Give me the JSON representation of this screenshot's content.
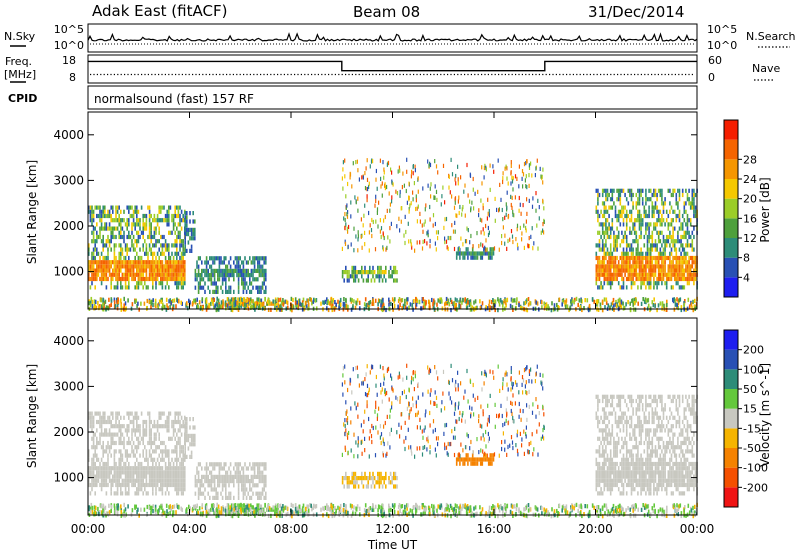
{
  "header": {
    "station": "Adak East (fitACF)",
    "beam": "Beam 08",
    "date": "31/Dec/2014"
  },
  "top_panels": {
    "nsky_label": "N.Sky",
    "nsky_ticks": [
      "10^5",
      "10^0"
    ],
    "nsearch_label": "N.Search",
    "nsearch_ticks": [
      "10^5",
      "10^0"
    ],
    "freq_label_1": "Freq.",
    "freq_label_2": "[MHz]",
    "freq_ticks": [
      "18",
      "8"
    ],
    "nave_label": "Nave",
    "nave_ticks": [
      "60",
      "0"
    ],
    "cpid_label": "CPID",
    "cpid_text": "normalsound (fast) 157 RF"
  },
  "axes": {
    "ylabel": "Slant Range [km]",
    "xlabel": "Time UT",
    "x_ticks": [
      "00:00",
      "04:00",
      "08:00",
      "12:00",
      "16:00",
      "20:00",
      "00:00"
    ],
    "y_ticks": [
      "1000",
      "2000",
      "3000",
      "4000"
    ]
  },
  "colorbars": {
    "power": {
      "label": "Power [dB]",
      "ticks": [
        "4",
        "8",
        "12",
        "16",
        "20",
        "24",
        "28"
      ],
      "colors": [
        "#1e1ef0",
        "#2850b4",
        "#2d8c78",
        "#4ea03c",
        "#9bcd28",
        "#f5c800",
        "#f59600",
        "#f56400",
        "#f51e00"
      ]
    },
    "velocity": {
      "label": "Velocity [m s^-1]",
      "ticks": [
        "200",
        "100",
        "50",
        "15",
        "-15",
        "-50",
        "-100",
        "-200"
      ],
      "colors": [
        "#1e1ef0",
        "#2850b4",
        "#2d8c78",
        "#64c83c",
        "#c8c8c0",
        "#f5b400",
        "#f58200",
        "#f55000",
        "#f01414"
      ]
    }
  },
  "chart_data": [
    {
      "type": "line",
      "name": "N.Sky / N.Search",
      "xlim": [
        0,
        24
      ],
      "x_unit": "hours UT",
      "points": [
        [
          0,
          4.2
        ],
        [
          2,
          4.6
        ],
        [
          4,
          4.4
        ],
        [
          6,
          4.8
        ],
        [
          8,
          4.5
        ],
        [
          10,
          4.9
        ],
        [
          12,
          4.6
        ],
        [
          14,
          4.8
        ],
        [
          16,
          4.7
        ],
        [
          18,
          4.6
        ],
        [
          20,
          4.4
        ],
        [
          22,
          4.6
        ],
        [
          24,
          4.3
        ]
      ]
    },
    {
      "type": "line",
      "name": "Freq.",
      "xlim": [
        0,
        24
      ],
      "ylim": [
        8,
        18
      ],
      "x": [
        0,
        10,
        10,
        18,
        18,
        24
      ],
      "values": [
        15.7,
        15.7,
        12.4,
        12.4,
        15.7,
        15.7
      ]
    },
    {
      "type": "heatmap",
      "name": "Power",
      "xlim": [
        0,
        24
      ],
      "ylim": [
        180,
        4500
      ],
      "regions": [
        {
          "t0": 0.0,
          "t1": 3.8,
          "r0": 700,
          "r1": 2450,
          "core0": 850,
          "core1": 1300,
          "peak": 28
        },
        {
          "t0": 3.8,
          "t1": 4.2,
          "r0": 1500,
          "r1": 2400,
          "core0": 1700,
          "core1": 2000,
          "peak": 12
        },
        {
          "t0": 4.2,
          "t1": 7.0,
          "r0": 600,
          "r1": 1350,
          "core0": 900,
          "core1": 1150,
          "peak": 14
        },
        {
          "t0": 5.5,
          "t1": 7.5,
          "r0": 250,
          "r1": 450,
          "core0": 300,
          "core1": 400,
          "peak": 26
        },
        {
          "t0": 10.0,
          "t1": 12.2,
          "r0": 850,
          "r1": 1200,
          "core0": 950,
          "core1": 1100,
          "peak": 20
        },
        {
          "t0": 14.5,
          "t1": 16.0,
          "r0": 1350,
          "r1": 1550,
          "core0": 1400,
          "core1": 1500,
          "peak": 14
        },
        {
          "t0": 20.0,
          "t1": 24.0,
          "r0": 700,
          "r1": 2900,
          "core0": 850,
          "core1": 1350,
          "peak": 28
        }
      ]
    },
    {
      "type": "heatmap",
      "name": "Velocity",
      "xlim": [
        0,
        24
      ],
      "ylim": [
        180,
        4500
      ],
      "regions": [
        {
          "t0": 0.0,
          "t1": 4.2,
          "r0": 700,
          "r1": 2450,
          "vel": 0
        },
        {
          "t0": 4.0,
          "t1": 7.0,
          "r0": 600,
          "r1": 1350,
          "vel": 40
        },
        {
          "t0": 10.0,
          "t1": 12.2,
          "r0": 850,
          "r1": 1200,
          "vel": -20
        },
        {
          "t0": 14.5,
          "t1": 16.0,
          "r0": 1350,
          "r1": 1550,
          "vel": -70
        },
        {
          "t0": 20.0,
          "t1": 24.0,
          "r0": 700,
          "r1": 2900,
          "vel": 0
        }
      ]
    }
  ]
}
